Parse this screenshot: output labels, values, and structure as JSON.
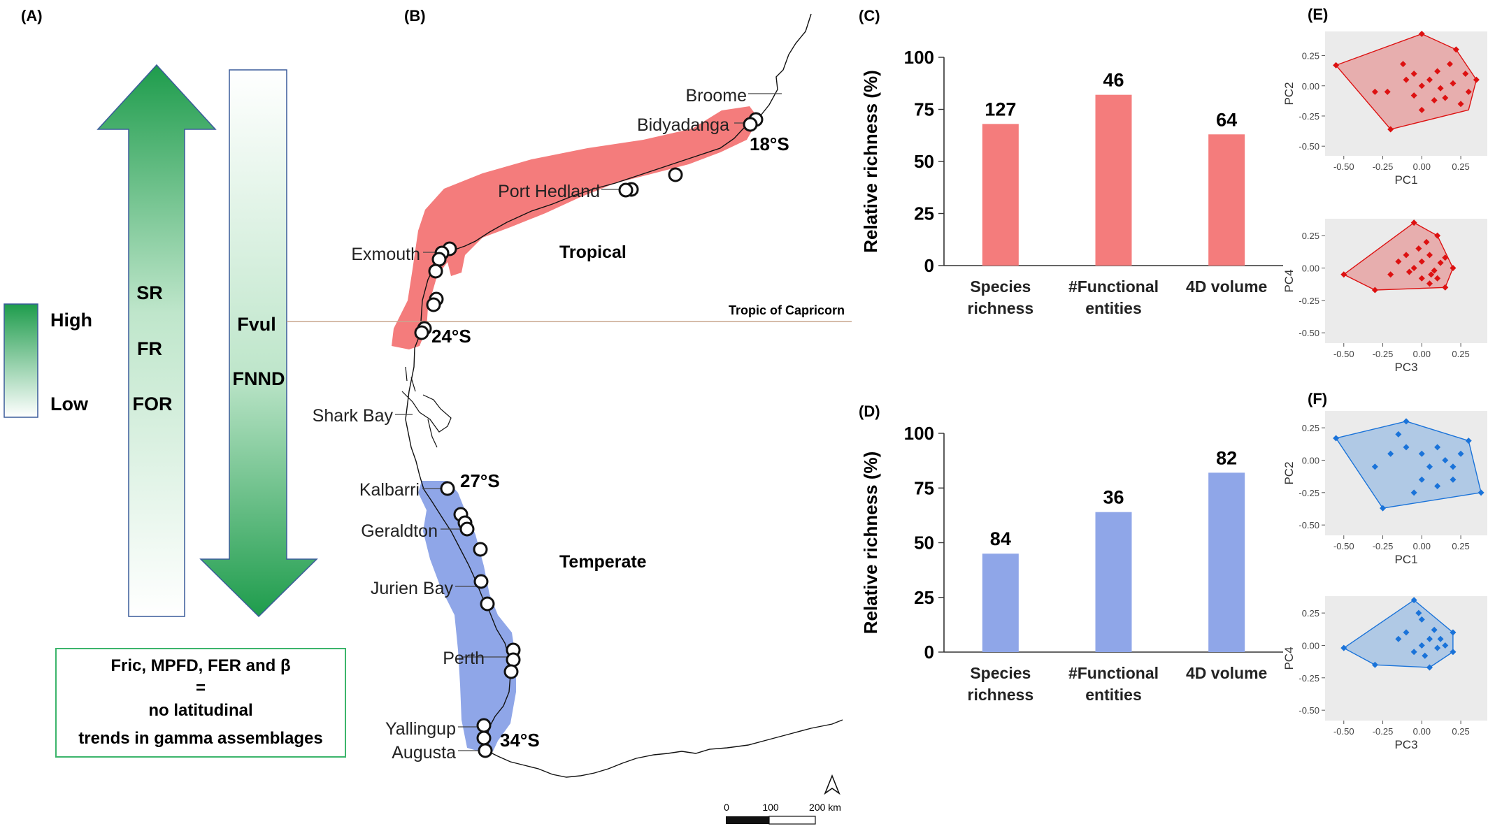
{
  "panel_labels": {
    "a": "(A)",
    "b": "(B)",
    "c": "(C)",
    "d": "(D)",
    "e": "(E)",
    "f": "(F)"
  },
  "legend": {
    "high": "High",
    "low": "Low"
  },
  "up_arrow": {
    "labels": [
      "SR",
      "FR",
      "FOR"
    ]
  },
  "down_arrow": {
    "labels": [
      "Fvul",
      "FNND"
    ]
  },
  "summary_box": {
    "lines": [
      "Fric, MPFD, FER and β",
      "=",
      "no latitudinal",
      "trends in gamma assemblages"
    ]
  },
  "colors": {
    "tropical": "#f47c7c",
    "temperate": "#8fa6e8",
    "tropical_pts": "#dd1111",
    "temperate_pts": "#1a73d9",
    "arrow_green": "#1e9c4c",
    "box_green": "#3cb56b",
    "tropic_line": "#c8a58e"
  },
  "map": {
    "towns": [
      "Broome",
      "Bidyadanga",
      "Port Hedland",
      "Exmouth",
      "Shark Bay",
      "Kalbarri",
      "Geraldton",
      "Jurien Bay",
      "Perth",
      "Yallingup",
      "Augusta"
    ],
    "latitudes": [
      "18°S",
      "24°S",
      "27°S",
      "34°S"
    ],
    "regions": {
      "tropical": "Tropical",
      "temperate": "Temperate"
    },
    "tropic_label": "Tropic of Capricorn",
    "scale": {
      "labels": [
        "0",
        "100",
        "200 km"
      ]
    }
  },
  "chart_data": [
    {
      "type": "bar",
      "panel": "(C)",
      "categories": [
        [
          "Species",
          "richness"
        ],
        [
          "#Functional",
          "entities"
        ],
        [
          "4D volume"
        ]
      ],
      "values": [
        68,
        82,
        63
      ],
      "data_labels": [
        "127",
        "46",
        "64"
      ],
      "ylabel": "Relative richness (%)",
      "ylim": [
        0,
        100
      ],
      "yticks": [
        "0",
        "25",
        "50",
        "75",
        "100"
      ],
      "color": "#f47c7c"
    },
    {
      "type": "bar",
      "panel": "(D)",
      "categories": [
        [
          "Species",
          "richness"
        ],
        [
          "#Functional",
          "entities"
        ],
        [
          "4D volume"
        ]
      ],
      "values": [
        45,
        64,
        82
      ],
      "data_labels": [
        "84",
        "36",
        "82"
      ],
      "ylabel": "Relative richness (%)",
      "ylim": [
        0,
        100
      ],
      "yticks": [
        "0",
        "25",
        "50",
        "75",
        "100"
      ],
      "color": "#8fa6e8"
    },
    {
      "type": "scatter",
      "panel": "(E)",
      "xlabel": "PC1",
      "ylabel": "PC2",
      "xlim": [
        -0.62,
        0.42
      ],
      "ylim": [
        -0.58,
        0.45
      ],
      "xticks": [
        "-0.50",
        "-0.25",
        "0.00",
        "0.25"
      ],
      "yticks": [
        "0.25",
        "0.00",
        "-0.25",
        "-0.50"
      ],
      "hull": [
        [
          -0.55,
          0.17
        ],
        [
          0.0,
          0.43
        ],
        [
          0.22,
          0.3
        ],
        [
          0.35,
          0.05
        ],
        [
          0.3,
          -0.2
        ],
        [
          -0.2,
          -0.36
        ],
        [
          -0.55,
          0.17
        ]
      ],
      "points": [
        [
          -0.55,
          0.17
        ],
        [
          0.0,
          0.43
        ],
        [
          0.22,
          0.3
        ],
        [
          0.35,
          0.05
        ],
        [
          -0.2,
          -0.36
        ],
        [
          -0.3,
          -0.05
        ],
        [
          -0.22,
          -0.05
        ],
        [
          -0.1,
          0.05
        ],
        [
          -0.05,
          0.1
        ],
        [
          0.0,
          0.0
        ],
        [
          0.05,
          0.05
        ],
        [
          0.1,
          0.12
        ],
        [
          0.12,
          -0.02
        ],
        [
          0.2,
          0.02
        ],
        [
          0.15,
          -0.1
        ],
        [
          0.25,
          -0.15
        ],
        [
          0.3,
          -0.05
        ],
        [
          0.08,
          -0.12
        ],
        [
          -0.05,
          -0.08
        ],
        [
          0.0,
          -0.2
        ],
        [
          0.18,
          0.18
        ],
        [
          -0.12,
          0.18
        ],
        [
          0.28,
          0.1
        ]
      ],
      "color": "#dd1111"
    },
    {
      "type": "scatter",
      "panel": "(E)",
      "xlabel": "PC3",
      "ylabel": "PC4",
      "xlim": [
        -0.62,
        0.42
      ],
      "ylim": [
        -0.58,
        0.38
      ],
      "xticks": [
        "-0.50",
        "-0.25",
        "0.00",
        "0.25"
      ],
      "yticks": [
        "0.25",
        "0.00",
        "-0.25",
        "-0.50"
      ],
      "hull": [
        [
          -0.5,
          -0.05
        ],
        [
          -0.05,
          0.35
        ],
        [
          0.1,
          0.25
        ],
        [
          0.2,
          0.0
        ],
        [
          0.15,
          -0.15
        ],
        [
          -0.3,
          -0.17
        ],
        [
          -0.5,
          -0.05
        ]
      ],
      "points": [
        [
          -0.5,
          -0.05
        ],
        [
          -0.05,
          0.35
        ],
        [
          0.1,
          0.25
        ],
        [
          0.2,
          0.0
        ],
        [
          -0.3,
          -0.17
        ],
        [
          0.15,
          -0.15
        ],
        [
          -0.15,
          0.05
        ],
        [
          -0.1,
          0.1
        ],
        [
          -0.05,
          0.0
        ],
        [
          0.0,
          0.05
        ],
        [
          0.05,
          0.1
        ],
        [
          0.08,
          -0.02
        ],
        [
          0.12,
          0.04
        ],
        [
          0.0,
          -0.08
        ],
        [
          0.05,
          -0.12
        ],
        [
          -0.02,
          0.15
        ],
        [
          0.1,
          -0.08
        ],
        [
          0.15,
          0.08
        ],
        [
          0.03,
          0.2
        ],
        [
          -0.08,
          -0.03
        ],
        [
          -0.2,
          -0.05
        ],
        [
          0.06,
          -0.05
        ]
      ],
      "color": "#dd1111"
    },
    {
      "type": "scatter",
      "panel": "(F)",
      "xlabel": "PC1",
      "ylabel": "PC2",
      "xlim": [
        -0.62,
        0.42
      ],
      "ylim": [
        -0.58,
        0.38
      ],
      "xticks": [
        "-0.50",
        "-0.25",
        "0.00",
        "0.25"
      ],
      "yticks": [
        "0.25",
        "0.00",
        "-0.25",
        "-0.50"
      ],
      "hull": [
        [
          -0.55,
          0.17
        ],
        [
          -0.1,
          0.3
        ],
        [
          0.3,
          0.15
        ],
        [
          0.38,
          -0.25
        ],
        [
          -0.25,
          -0.37
        ],
        [
          -0.55,
          0.17
        ]
      ],
      "points": [
        [
          -0.55,
          0.17
        ],
        [
          -0.1,
          0.3
        ],
        [
          0.3,
          0.15
        ],
        [
          0.38,
          -0.25
        ],
        [
          -0.25,
          -0.37
        ],
        [
          -0.3,
          -0.05
        ],
        [
          -0.2,
          0.05
        ],
        [
          -0.1,
          0.1
        ],
        [
          0.0,
          0.05
        ],
        [
          0.05,
          -0.05
        ],
        [
          0.1,
          0.1
        ],
        [
          0.15,
          0.0
        ],
        [
          0.2,
          -0.05
        ],
        [
          0.25,
          0.05
        ],
        [
          0.0,
          -0.15
        ],
        [
          -0.05,
          -0.25
        ],
        [
          0.1,
          -0.2
        ],
        [
          0.2,
          -0.15
        ],
        [
          -0.15,
          0.2
        ]
      ],
      "color": "#1a73d9"
    },
    {
      "type": "scatter",
      "panel": "(F)",
      "xlabel": "PC3",
      "ylabel": "PC4",
      "xlim": [
        -0.62,
        0.42
      ],
      "ylim": [
        -0.58,
        0.38
      ],
      "xticks": [
        "-0.50",
        "-0.25",
        "0.00",
        "0.25"
      ],
      "yticks": [
        "0.25",
        "0.00",
        "-0.25",
        "-0.50"
      ],
      "hull": [
        [
          -0.5,
          -0.02
        ],
        [
          -0.05,
          0.35
        ],
        [
          0.2,
          0.1
        ],
        [
          0.2,
          -0.05
        ],
        [
          0.05,
          -0.17
        ],
        [
          -0.3,
          -0.15
        ],
        [
          -0.5,
          -0.02
        ]
      ],
      "points": [
        [
          -0.5,
          -0.02
        ],
        [
          -0.05,
          0.35
        ],
        [
          0.2,
          0.1
        ],
        [
          0.2,
          -0.05
        ],
        [
          0.05,
          -0.17
        ],
        [
          -0.3,
          -0.15
        ],
        [
          -0.15,
          0.05
        ],
        [
          -0.1,
          0.1
        ],
        [
          0.0,
          0.0
        ],
        [
          0.05,
          0.05
        ],
        [
          0.08,
          0.12
        ],
        [
          0.0,
          0.2
        ],
        [
          0.1,
          -0.02
        ],
        [
          0.12,
          0.05
        ],
        [
          -0.05,
          -0.05
        ],
        [
          0.02,
          -0.08
        ],
        [
          0.15,
          0.0
        ],
        [
          -0.02,
          0.25
        ]
      ],
      "color": "#1a73d9"
    }
  ]
}
